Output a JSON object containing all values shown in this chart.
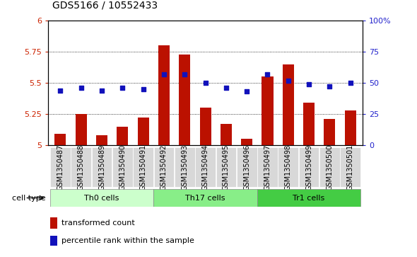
{
  "title": "GDS5166 / 10552433",
  "samples": [
    "GSM1350487",
    "GSM1350488",
    "GSM1350489",
    "GSM1350490",
    "GSM1350491",
    "GSM1350492",
    "GSM1350493",
    "GSM1350494",
    "GSM1350495",
    "GSM1350496",
    "GSM1350497",
    "GSM1350498",
    "GSM1350499",
    "GSM1350500",
    "GSM1350501"
  ],
  "transformed_count": [
    5.09,
    5.25,
    5.08,
    5.15,
    5.22,
    5.8,
    5.73,
    5.3,
    5.17,
    5.05,
    5.55,
    5.65,
    5.34,
    5.21,
    5.28
  ],
  "percentile_rank": [
    44,
    46,
    44,
    46,
    45,
    57,
    57,
    50,
    46,
    43,
    57,
    52,
    49,
    47,
    50
  ],
  "ylim_left": [
    5.0,
    6.0
  ],
  "ylim_right": [
    0,
    100
  ],
  "yticks_left": [
    5.0,
    5.25,
    5.5,
    5.75,
    6.0
  ],
  "ytick_labels_left": [
    "5",
    "5.25",
    "5.5",
    "5.75",
    "6"
  ],
  "yticks_right": [
    0,
    25,
    50,
    75,
    100
  ],
  "ytick_labels_right": [
    "0",
    "25",
    "50",
    "75",
    "100%"
  ],
  "cell_groups": [
    {
      "label": "Th0 cells",
      "start": 0,
      "end": 4,
      "color": "#ccffcc"
    },
    {
      "label": "Th17 cells",
      "start": 5,
      "end": 9,
      "color": "#88ee88"
    },
    {
      "label": "Tr1 cells",
      "start": 10,
      "end": 14,
      "color": "#44cc44"
    }
  ],
  "bar_color": "#bb1100",
  "dot_color": "#1111bb",
  "bar_width": 0.55,
  "cell_type_label": "cell type",
  "legend_bar_label": "transformed count",
  "legend_dot_label": "percentile rank within the sample",
  "axis_label_color_left": "#cc2200",
  "axis_label_color_right": "#2222cc",
  "title_fontsize": 10,
  "tick_label_fontsize": 8,
  "sample_label_fontsize": 7
}
